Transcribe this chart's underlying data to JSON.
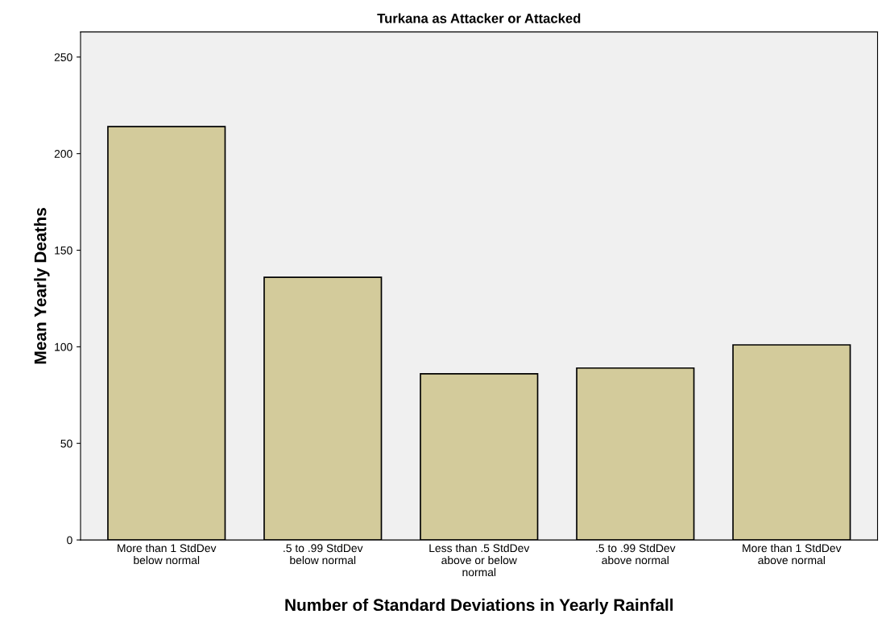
{
  "chart_data": {
    "type": "bar",
    "title": "Turkana as Attacker or Attacked",
    "xlabel": "Number of Standard Deviations in Yearly Rainfall",
    "ylabel": "Mean Yearly Deaths",
    "categories": [
      "More than 1 StdDev\nbelow normal",
      ".5 to .99 StdDev\nbelow normal",
      "Less than .5 StdDev\nabove or below\nnormal",
      ".5 to .99 StdDev\nabove normal",
      "More than 1 StdDev\nabove normal"
    ],
    "values": [
      214,
      136,
      86,
      89,
      101
    ],
    "color": "#d3cb9b",
    "ylim": [
      0,
      263
    ],
    "yticks": [
      0,
      50,
      100,
      150,
      200,
      250
    ],
    "grid": false,
    "legend": false
  }
}
